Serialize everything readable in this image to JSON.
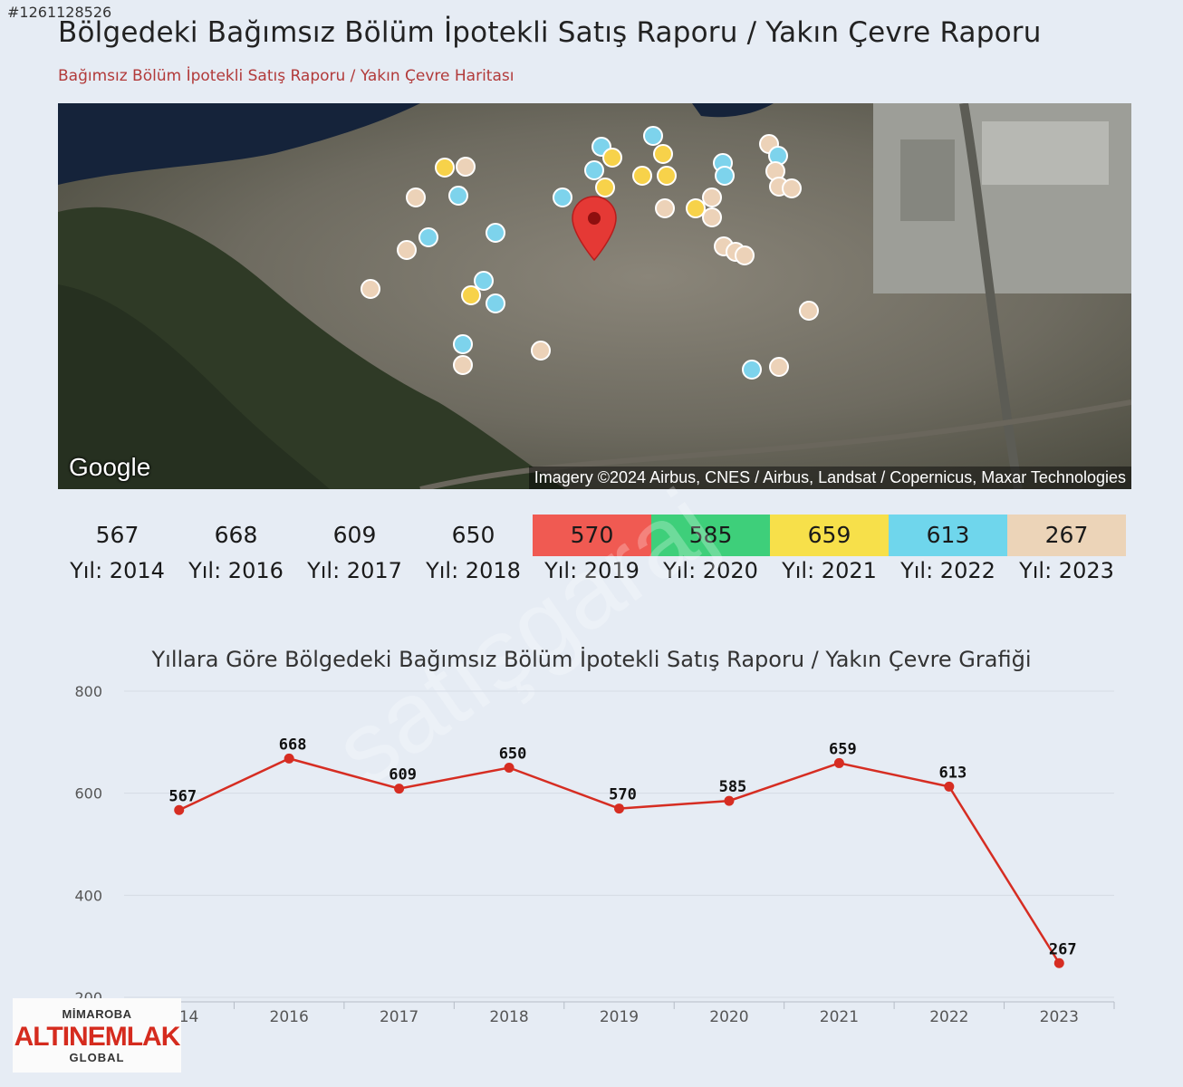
{
  "listing_id": "#1261128526",
  "page_title": "Bölgedeki Bağımsız Bölüm İpotekli Satış Raporu / Yakın Çevre Raporu",
  "map": {
    "subtitle": "Bağımsız Bölüm İpotekli Satış Raporu / Yakın Çevre Haritası",
    "google_label": "Google",
    "imagery_credit": "Imagery ©2024 Airbus, CNES / Airbus, Landsat / Copernicus, Maxar Technologies",
    "center_marker_icon": "location-pin-icon",
    "marker_colors": {
      "2021": "#f7d24a",
      "2022": "#7dd3ec",
      "2023": "#ecd2b8",
      "pin": "#e53935"
    }
  },
  "watermark": "satışgaraj",
  "year_summary": [
    {
      "value": "567",
      "label": "Yıl: 2014",
      "color": ""
    },
    {
      "value": "668",
      "label": "Yıl: 2016",
      "color": ""
    },
    {
      "value": "609",
      "label": "Yıl: 2017",
      "color": ""
    },
    {
      "value": "650",
      "label": "Yıl: 2018",
      "color": ""
    },
    {
      "value": "570",
      "label": "Yıl: 2019",
      "color": "#f05a52"
    },
    {
      "value": "585",
      "label": "Yıl: 2020",
      "color": "#3ecf7a"
    },
    {
      "value": "659",
      "label": "Yıl: 2021",
      "color": "#f7e04a"
    },
    {
      "value": "613",
      "label": "Yıl: 2022",
      "color": "#6fd6ec"
    },
    {
      "value": "267",
      "label": "Yıl: 2023",
      "color": "#ecd4b8"
    }
  ],
  "chart_title": "Yıllara Göre Bölgedeki Bağımsız Bölüm İpotekli Satış Raporu / Yakın Çevre Grafiği",
  "chart_data": {
    "type": "line",
    "title": "Yıllara Göre Bölgedeki Bağımsız Bölüm İpotekli Satış Raporu / Yakın Çevre Grafiği",
    "categories": [
      "2014",
      "2016",
      "2017",
      "2018",
      "2019",
      "2020",
      "2021",
      "2022",
      "2023"
    ],
    "series": [
      {
        "values": [
          567,
          668,
          609,
          650,
          570,
          585,
          659,
          613,
          267
        ]
      }
    ],
    "yticks": [
      200,
      400,
      600,
      800
    ],
    "ylim": [
      200,
      800
    ],
    "xlabel": "",
    "ylabel": "",
    "grid": true,
    "data_labels": true,
    "line_color": "#d62d22"
  },
  "logo": {
    "top": "MİMAROBA",
    "main": "ALTINEMLAK",
    "bottom": "GLOBAL"
  }
}
